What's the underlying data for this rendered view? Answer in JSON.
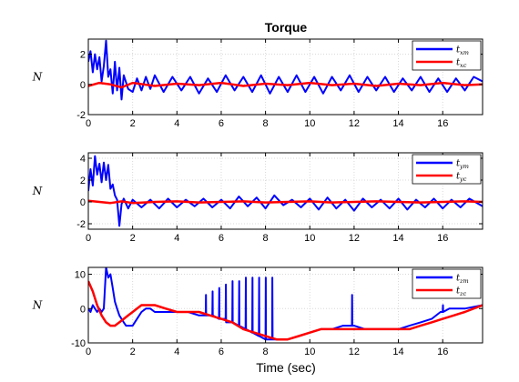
{
  "figure": {
    "title": "Torque",
    "xlabel": "Time (sec)"
  },
  "chart_data": [
    {
      "type": "line",
      "title": "Torque",
      "xlabel": "",
      "ylabel": "N",
      "xlim": [
        0,
        17.8
      ],
      "ylim": [
        -2,
        3
      ],
      "xticks": [
        0,
        2,
        4,
        6,
        8,
        10,
        12,
        14,
        16
      ],
      "yticks": [
        -2,
        0,
        2
      ],
      "grid": true,
      "legend_position": "top-right",
      "series": [
        {
          "name": "t_xm",
          "legend_main": "t",
          "legend_sub": "xm",
          "color": "#0000ff",
          "x": [
            0,
            0.1,
            0.2,
            0.3,
            0.4,
            0.5,
            0.6,
            0.7,
            0.8,
            0.9,
            1.0,
            1.1,
            1.2,
            1.3,
            1.4,
            1.5,
            1.6,
            1.8,
            2.0,
            2.2,
            2.4,
            2.6,
            2.8,
            3.0,
            3.4,
            3.8,
            4.2,
            4.6,
            5.0,
            5.4,
            5.8,
            6.2,
            6.6,
            7.0,
            7.4,
            7.8,
            8.2,
            8.6,
            9.0,
            9.4,
            9.8,
            10.2,
            10.6,
            11.0,
            11.4,
            11.8,
            12.2,
            12.6,
            13.0,
            13.4,
            13.8,
            14.2,
            14.6,
            15.0,
            15.4,
            15.8,
            16.2,
            16.6,
            17.0,
            17.4,
            17.8
          ],
          "y": [
            1.5,
            2.2,
            0.8,
            2.0,
            1.0,
            1.8,
            0.2,
            1.2,
            2.9,
            0.5,
            1.0,
            -0.6,
            1.5,
            -0.4,
            1.1,
            -1.0,
            0.6,
            -0.3,
            -0.5,
            0.4,
            -0.4,
            0.5,
            -0.3,
            0.6,
            -0.5,
            0.5,
            -0.4,
            0.5,
            -0.6,
            0.4,
            -0.5,
            0.6,
            -0.4,
            0.5,
            -0.5,
            0.6,
            -0.6,
            0.5,
            -0.5,
            0.6,
            -0.5,
            0.5,
            -0.6,
            0.5,
            -0.4,
            0.6,
            -0.5,
            0.5,
            -0.4,
            0.5,
            -0.5,
            0.4,
            -0.4,
            0.5,
            -0.5,
            0.4,
            -0.5,
            0.4,
            -0.4,
            0.5,
            0.2
          ]
        },
        {
          "name": "t_xc",
          "legend_main": "t",
          "legend_sub": "xc",
          "color": "#ff0000",
          "x": [
            0,
            0.5,
            1.0,
            1.5,
            2.0,
            3.0,
            4.0,
            5.0,
            6.0,
            7.0,
            8.0,
            9.0,
            10.0,
            11.0,
            12.0,
            13.0,
            14.0,
            15.0,
            16.0,
            17.0,
            17.8
          ],
          "y": [
            -0.1,
            0.1,
            0.0,
            -0.2,
            0.1,
            -0.1,
            0.05,
            -0.05,
            0.1,
            -0.1,
            0.05,
            -0.05,
            0.1,
            -0.05,
            0.05,
            -0.1,
            0.05,
            -0.05,
            0.1,
            -0.05,
            0.0
          ]
        }
      ]
    },
    {
      "type": "line",
      "title": "",
      "xlabel": "",
      "ylabel": "N",
      "xlim": [
        0,
        17.8
      ],
      "ylim": [
        -2.5,
        4.5
      ],
      "xticks": [
        0,
        2,
        4,
        6,
        8,
        10,
        12,
        14,
        16
      ],
      "yticks": [
        -2,
        0,
        2,
        4
      ],
      "grid": true,
      "legend_position": "top-right",
      "series": [
        {
          "name": "t_ym",
          "legend_main": "t",
          "legend_sub": "ym",
          "color": "#0000ff",
          "x": [
            0,
            0.1,
            0.2,
            0.3,
            0.4,
            0.5,
            0.6,
            0.7,
            0.8,
            0.9,
            1.0,
            1.1,
            1.2,
            1.3,
            1.4,
            1.5,
            1.6,
            1.8,
            2.0,
            2.4,
            2.8,
            3.2,
            3.6,
            4.0,
            4.4,
            4.8,
            5.2,
            5.6,
            6.0,
            6.4,
            6.8,
            7.2,
            7.6,
            8.0,
            8.4,
            8.8,
            9.2,
            9.6,
            10.0,
            10.4,
            10.8,
            11.2,
            11.6,
            12.0,
            12.4,
            12.8,
            13.2,
            13.6,
            14.0,
            14.4,
            14.8,
            15.2,
            15.6,
            16.0,
            16.4,
            16.8,
            17.2,
            17.8
          ],
          "y": [
            1.0,
            3.0,
            1.5,
            4.2,
            2.5,
            3.5,
            1.8,
            3.6,
            2.0,
            3.4,
            1.2,
            1.6,
            0.6,
            0.2,
            -2.2,
            -0.2,
            0.3,
            -0.6,
            0.2,
            -0.5,
            0.2,
            -0.6,
            0.3,
            -0.5,
            0.2,
            -0.4,
            0.3,
            -0.5,
            0.2,
            -0.6,
            0.5,
            -0.4,
            0.4,
            -0.6,
            0.6,
            -0.3,
            0.2,
            -0.5,
            0.3,
            -0.7,
            0.4,
            -0.6,
            0.2,
            -0.8,
            0.3,
            -0.5,
            0.2,
            -0.6,
            0.3,
            -0.7,
            0.2,
            -0.5,
            0.3,
            -0.6,
            0.2,
            -0.5,
            0.3,
            -0.4
          ]
        },
        {
          "name": "t_yc",
          "legend_main": "t",
          "legend_sub": "yc",
          "color": "#ff0000",
          "x": [
            0,
            0.5,
            1.0,
            1.5,
            2.0,
            3.0,
            4.0,
            5.0,
            6.0,
            7.0,
            8.0,
            9.0,
            10.0,
            11.0,
            12.0,
            13.0,
            14.0,
            15.0,
            16.0,
            17.0,
            17.8
          ],
          "y": [
            0.1,
            0.0,
            -0.1,
            0.05,
            -0.1,
            0.0,
            0.05,
            -0.05,
            0.0,
            0.05,
            -0.05,
            0.0,
            0.05,
            -0.05,
            0.0,
            0.05,
            0.0,
            -0.05,
            0.0,
            0.05,
            0.0
          ]
        }
      ]
    },
    {
      "type": "line",
      "title": "",
      "xlabel": "Time (sec)",
      "ylabel": "N",
      "xlim": [
        0,
        17.8
      ],
      "ylim": [
        -10,
        12
      ],
      "xticks": [
        0,
        2,
        4,
        6,
        8,
        10,
        12,
        14,
        16
      ],
      "yticks": [
        -10,
        0,
        10
      ],
      "grid": true,
      "legend_position": "top-right",
      "series": [
        {
          "name": "t_zm",
          "legend_main": "t",
          "legend_sub": "zm",
          "color": "#0000ff",
          "x": [
            0,
            0.1,
            0.2,
            0.3,
            0.4,
            0.5,
            0.6,
            0.7,
            0.8,
            0.9,
            1.0,
            1.1,
            1.2,
            1.3,
            1.4,
            1.5,
            1.6,
            1.7,
            1.8,
            2.0,
            2.2,
            2.4,
            2.6,
            2.8,
            3.0,
            3.5,
            4.0,
            4.5,
            5.0,
            5.3,
            5.31,
            5.32,
            5.6,
            5.61,
            5.62,
            5.9,
            5.91,
            5.92,
            6.2,
            6.21,
            6.22,
            6.5,
            6.51,
            6.52,
            6.8,
            6.81,
            6.82,
            7.1,
            7.11,
            7.12,
            7.4,
            7.41,
            7.42,
            7.7,
            7.71,
            7.72,
            8.0,
            8.01,
            8.02,
            8.3,
            8.31,
            8.32,
            8.5,
            9.0,
            9.5,
            10.0,
            10.5,
            11.0,
            11.5,
            11.8,
            11.9,
            11.91,
            11.92,
            12.0,
            12.5,
            13.0,
            13.5,
            14.0,
            14.5,
            15.0,
            15.5,
            15.9,
            16.0,
            16.01,
            16.02,
            16.3,
            17.0,
            17.8
          ],
          "y": [
            0,
            -1,
            1,
            0,
            -1,
            0,
            -1,
            0,
            12,
            9,
            10,
            6,
            2,
            0,
            -2,
            -3,
            -4,
            -5,
            -5,
            -5,
            -3,
            -1,
            0,
            0,
            -1,
            -1,
            -1,
            -1,
            -2,
            -2,
            4,
            -2,
            -2,
            5,
            -2,
            -3,
            6,
            -3,
            -3,
            7,
            -4,
            -4,
            8,
            -4,
            -5,
            8,
            -5,
            -6,
            9,
            -6,
            -7,
            9,
            -7,
            -8,
            9,
            -8,
            -9,
            9,
            -9,
            -9,
            9,
            -9,
            -9,
            -9,
            -8,
            -7,
            -6,
            -6,
            -5,
            -5,
            -5,
            4,
            -5,
            -5,
            -6,
            -6,
            -6,
            -6,
            -5,
            -4,
            -3,
            -1,
            -1,
            1,
            -1,
            0,
            0,
            1
          ]
        },
        {
          "name": "t_zc",
          "legend_main": "t",
          "legend_sub": "zc",
          "color": "#ff0000",
          "x": [
            0,
            0.2,
            0.4,
            0.6,
            0.8,
            1.0,
            1.2,
            1.4,
            1.6,
            1.8,
            2.0,
            2.2,
            2.4,
            2.6,
            2.8,
            3.0,
            3.5,
            4.0,
            4.5,
            5.0,
            5.5,
            6.0,
            6.5,
            7.0,
            7.5,
            8.0,
            8.5,
            9.0,
            9.5,
            10.0,
            10.5,
            11.0,
            11.5,
            12.0,
            12.5,
            13.0,
            13.5,
            14.0,
            14.5,
            15.0,
            15.5,
            16.0,
            16.5,
            17.0,
            17.8
          ],
          "y": [
            8,
            5,
            1,
            -2,
            -4,
            -5,
            -5,
            -4,
            -3,
            -2,
            -1,
            0,
            1,
            1,
            1,
            1,
            0,
            -1,
            -1,
            -1,
            -2,
            -3,
            -4,
            -6,
            -7,
            -8,
            -9,
            -9,
            -8,
            -7,
            -6,
            -6,
            -6,
            -6,
            -6,
            -6,
            -6,
            -6,
            -6,
            -5,
            -4,
            -3,
            -2,
            -1,
            1
          ]
        }
      ]
    }
  ]
}
